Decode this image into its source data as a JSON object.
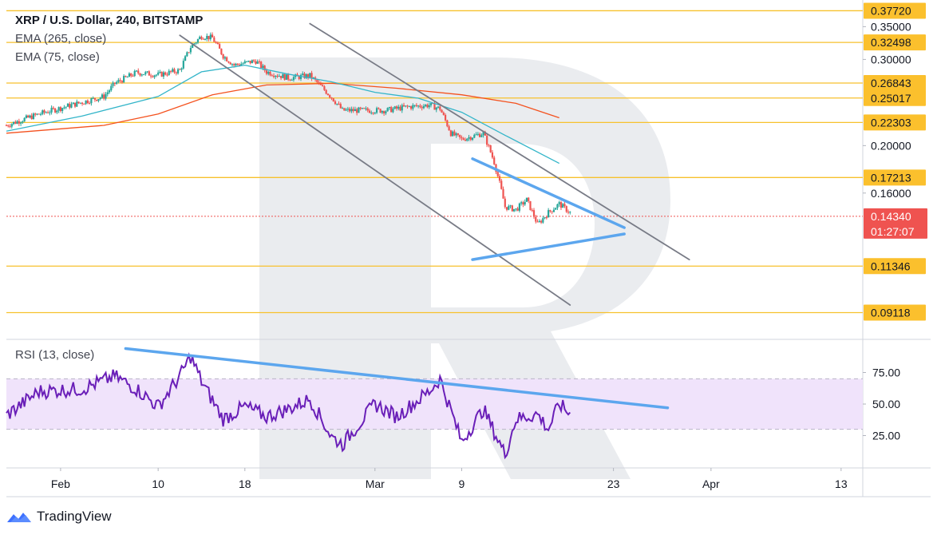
{
  "header": {
    "title": "XRP / U.S. Dollar, 240, BITSTAMP",
    "indicators": [
      "EMA (265, close)",
      "EMA (75, close)"
    ]
  },
  "rsi_panel": {
    "label": "RSI (13, close)"
  },
  "footer": {
    "brand": "TradingView"
  },
  "colors": {
    "bull": "#26a69a",
    "bear": "#ef5350",
    "ema75": "#33b5c9",
    "ema265": "#f4511e",
    "level": "#f7c12d",
    "level_label_bg": "#fbc02d",
    "channel": "#787b86",
    "trend": "#5ca6ee",
    "rsi_line": "#6a1fb8",
    "rsi_band": "#f0e3fb",
    "current_price_bg": "#ef5350",
    "current_price_line": "#ef5350"
  },
  "chart_data": [
    {
      "type": "candlestick",
      "title": "XRP / U.S. Dollar, 240, BITSTAMP",
      "y_scale": "log",
      "ylim": [
        0.081,
        0.385
      ],
      "xlim": [
        "2020-01-27",
        "2020-04-15"
      ],
      "x_ticks": [
        {
          "date": "2020-02-01",
          "label": "Feb"
        },
        {
          "date": "2020-02-10",
          "label": "10"
        },
        {
          "date": "2020-02-18",
          "label": "18"
        },
        {
          "date": "2020-03-01",
          "label": "Mar"
        },
        {
          "date": "2020-03-09",
          "label": "9"
        },
        {
          "date": "2020-03-23",
          "label": "23"
        },
        {
          "date": "2020-04-01",
          "label": "Apr"
        },
        {
          "date": "2020-04-13",
          "label": "13"
        }
      ],
      "y_ticks": [
        "0.35000",
        "0.30000",
        "0.20000",
        "0.16000"
      ],
      "horizontal_levels": [
        "0.37720",
        "0.32498",
        "0.26843",
        "0.25017",
        "0.22303",
        "0.17213",
        "0.11346",
        "0.09118"
      ],
      "current_price": "0.14340",
      "countdown": "01:27:07",
      "price_path": [
        [
          "2020-01-27",
          0.22
        ],
        [
          "2020-01-30",
          0.232
        ],
        [
          "2020-02-02",
          0.242
        ],
        [
          "2020-02-05",
          0.252
        ],
        [
          "2020-02-06",
          0.268
        ],
        [
          "2020-02-08",
          0.282
        ],
        [
          "2020-02-10",
          0.279
        ],
        [
          "2020-02-12",
          0.285
        ],
        [
          "2020-02-13",
          0.318
        ],
        [
          "2020-02-14",
          0.335
        ],
        [
          "2020-02-15",
          0.332
        ],
        [
          "2020-02-16",
          0.305
        ],
        [
          "2020-02-17",
          0.292
        ],
        [
          "2020-02-19",
          0.298
        ],
        [
          "2020-02-20",
          0.283
        ],
        [
          "2020-02-22",
          0.275
        ],
        [
          "2020-02-24",
          0.278
        ],
        [
          "2020-02-26",
          0.251
        ],
        [
          "2020-02-27",
          0.236
        ],
        [
          "2020-02-29",
          0.236
        ],
        [
          "2020-03-02",
          0.236
        ],
        [
          "2020-03-04",
          0.24
        ],
        [
          "2020-03-06",
          0.242
        ],
        [
          "2020-03-07",
          0.238
        ],
        [
          "2020-03-08",
          0.212
        ],
        [
          "2020-03-09",
          0.206
        ],
        [
          "2020-03-11",
          0.212
        ],
        [
          "2020-03-12",
          0.185
        ],
        [
          "2020-03-13",
          0.15
        ],
        [
          "2020-03-14",
          0.148
        ],
        [
          "2020-03-15",
          0.155
        ],
        [
          "2020-03-16",
          0.138
        ],
        [
          "2020-03-17",
          0.146
        ],
        [
          "2020-03-18",
          0.152
        ],
        [
          "2020-03-19",
          0.146
        ]
      ],
      "ema_75": [
        [
          "2020-01-27",
          0.214
        ],
        [
          "2020-02-03",
          0.23
        ],
        [
          "2020-02-10",
          0.252
        ],
        [
          "2020-02-14",
          0.283
        ],
        [
          "2020-02-18",
          0.292
        ],
        [
          "2020-02-22",
          0.28
        ],
        [
          "2020-02-26",
          0.27
        ],
        [
          "2020-03-01",
          0.257
        ],
        [
          "2020-03-05",
          0.25
        ],
        [
          "2020-03-09",
          0.234
        ],
        [
          "2020-03-13",
          0.21
        ],
        [
          "2020-03-18",
          0.184
        ]
      ],
      "ema_265": [
        [
          "2020-01-27",
          0.212
        ],
        [
          "2020-02-05",
          0.22
        ],
        [
          "2020-02-10",
          0.232
        ],
        [
          "2020-02-15",
          0.254
        ],
        [
          "2020-02-20",
          0.266
        ],
        [
          "2020-02-26",
          0.268
        ],
        [
          "2020-03-03",
          0.262
        ],
        [
          "2020-03-09",
          0.254
        ],
        [
          "2020-03-14",
          0.244
        ],
        [
          "2020-03-18",
          0.228
        ]
      ],
      "trendlines": [
        {
          "style": "channel",
          "from": [
            "2020-02-12",
            0.336
          ],
          "to": [
            "2020-03-19",
            0.0945
          ]
        },
        {
          "style": "channel",
          "from": [
            "2020-02-24",
            0.355
          ],
          "to": [
            "2020-03-30",
            0.117
          ]
        },
        {
          "style": "triangle",
          "from": [
            "2020-03-10",
            0.188
          ],
          "to": [
            "2020-03-24",
            0.136
          ]
        },
        {
          "style": "triangle",
          "from": [
            "2020-03-10",
            0.117
          ],
          "to": [
            "2020-03-24",
            0.132
          ]
        }
      ]
    },
    {
      "type": "line",
      "title": "RSI (13, close)",
      "ylim": [
        0,
        100
      ],
      "y_ticks": [
        "75.00",
        "50.00",
        "25.00"
      ],
      "band": [
        30,
        70
      ],
      "series": [
        {
          "values_path": [
            [
              "2020-01-27",
              41
            ],
            [
              "2020-01-30",
              60
            ],
            [
              "2020-02-03",
              62
            ],
            [
              "2020-02-06",
              72
            ],
            [
              "2020-02-08",
              62
            ],
            [
              "2020-02-10",
              48
            ],
            [
              "2020-02-12",
              72
            ],
            [
              "2020-02-13",
              88
            ],
            [
              "2020-02-14",
              68
            ],
            [
              "2020-02-16",
              38
            ],
            [
              "2020-02-18",
              48
            ],
            [
              "2020-02-20",
              40
            ],
            [
              "2020-02-22",
              46
            ],
            [
              "2020-02-24",
              54
            ],
            [
              "2020-02-26",
              24
            ],
            [
              "2020-02-27",
              18
            ],
            [
              "2020-03-01",
              50
            ],
            [
              "2020-03-03",
              40
            ],
            [
              "2020-03-06",
              60
            ],
            [
              "2020-03-07",
              70
            ],
            [
              "2020-03-08",
              45
            ],
            [
              "2020-03-09",
              20
            ],
            [
              "2020-03-11",
              46
            ],
            [
              "2020-03-13",
              10
            ],
            [
              "2020-03-14",
              38
            ],
            [
              "2020-03-16",
              42
            ],
            [
              "2020-03-17",
              30
            ],
            [
              "2020-03-18",
              50
            ],
            [
              "2020-03-19",
              42
            ]
          ]
        }
      ],
      "trendlines": [
        {
          "style": "trend",
          "from": [
            "2020-02-07",
            94
          ],
          "to": [
            "2020-03-28",
            47
          ]
        }
      ]
    }
  ]
}
